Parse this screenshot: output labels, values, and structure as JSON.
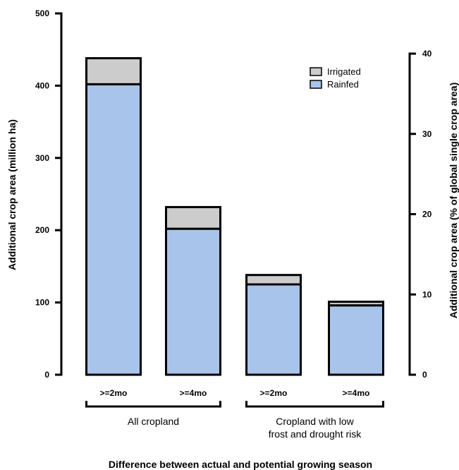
{
  "chart_data": {
    "type": "bar",
    "stacked": true,
    "categories": [
      ">=2mo",
      ">=4mo",
      ">=2mo",
      ">=4mo"
    ],
    "groups": [
      {
        "label": "All cropland",
        "categories": [
          0,
          1
        ]
      },
      {
        "label": "Cropland with low frost and drought risk",
        "label_lines": [
          "Cropland with low",
          "frost and drought risk"
        ],
        "categories": [
          2,
          3
        ]
      }
    ],
    "series": [
      {
        "name": "Rainfed",
        "values": [
          402,
          202,
          125,
          96
        ],
        "color": "#a8c4ea"
      },
      {
        "name": "Irrigated",
        "values": [
          36,
          30,
          13,
          5
        ],
        "color": "#cccccc"
      }
    ],
    "xlabel": "Difference between actual and potential growing season",
    "ylabel": "Additional crop area (million ha)",
    "ylim": [
      0,
      500
    ],
    "yticks": [
      0,
      100,
      200,
      300,
      400,
      500
    ],
    "y2label": "Additional crop area (% of global single crop area)",
    "y2lim": [
      0,
      40
    ],
    "y2ticks": [
      0,
      10,
      20,
      30,
      40
    ],
    "legend_position": "top-right",
    "grid": false
  }
}
